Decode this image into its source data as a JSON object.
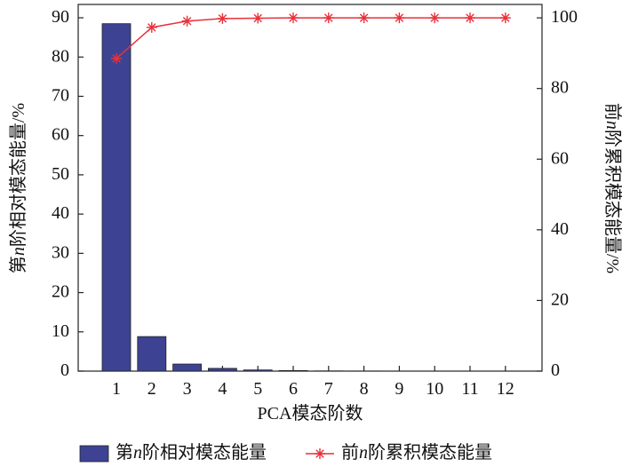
{
  "chart_data": {
    "type": "bar",
    "xlabel": "PCA模态阶数",
    "ylabel": "第n阶相对模态能量/%",
    "y2label": "前n阶累积模态能量/%",
    "categories": [
      "1",
      "2",
      "3",
      "4",
      "5",
      "6",
      "7",
      "8",
      "9",
      "10",
      "11",
      "12"
    ],
    "series": [
      {
        "name": "第n阶相对模态能量",
        "type": "bar",
        "color": "#3d4392",
        "values": [
          88.5,
          8.8,
          1.8,
          0.7,
          0.3,
          0.15,
          0.05,
          0.03,
          0.02,
          0.01,
          0.01,
          0.005
        ]
      },
      {
        "name": "前n阶累积模态能量",
        "type": "line",
        "axis": "y2",
        "color": "#e8313a",
        "marker": "asterisk",
        "values": [
          88.5,
          97.3,
          99.1,
          99.8,
          99.9,
          100,
          100,
          100,
          100,
          100,
          100,
          100
        ]
      }
    ],
    "ylim": [
      0,
      93.4
    ],
    "yticks": [
      0,
      10,
      20,
      30,
      40,
      50,
      60,
      70,
      80,
      90
    ],
    "y2lim": [
      0,
      103.8
    ],
    "y2ticks": [
      0,
      20,
      40,
      60,
      80,
      100
    ],
    "legend": "bottom"
  }
}
